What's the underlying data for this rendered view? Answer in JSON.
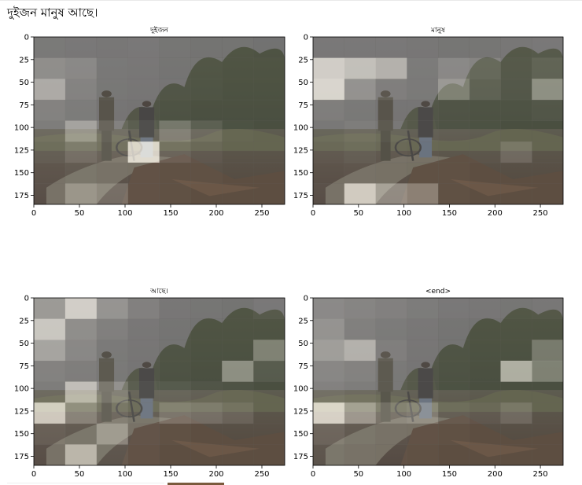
{
  "caption": "দুইজন মানুষ আছে।",
  "chart_data": [
    {
      "type": "heatmap",
      "title": "দুইজন",
      "xticks": [
        0,
        50,
        100,
        150,
        200,
        250
      ],
      "yticks": [
        0,
        25,
        50,
        75,
        100,
        125,
        150,
        175
      ],
      "xlim": [
        0,
        275
      ],
      "ylim": [
        185,
        0
      ],
      "grid": [
        [
          0.12,
          0.1,
          0.08,
          0.1,
          0.06,
          0.04,
          0.04,
          0.02
        ],
        [
          0.35,
          0.3,
          0.12,
          0.1,
          0.06,
          0.06,
          0.04,
          0.04
        ],
        [
          0.6,
          0.25,
          0.12,
          0.1,
          0.08,
          0.06,
          0.04,
          0.04
        ],
        [
          0.25,
          0.18,
          0.1,
          0.08,
          0.06,
          0.04,
          0.04,
          0.04
        ],
        [
          0.2,
          0.55,
          0.25,
          0.15,
          0.4,
          0.2,
          0.06,
          0.04
        ],
        [
          0.15,
          0.3,
          0.2,
          0.95,
          0.2,
          0.1,
          0.04,
          0.04
        ],
        [
          0.1,
          0.15,
          0.1,
          0.08,
          0.06,
          0.06,
          0.04,
          0.04
        ],
        [
          0.1,
          0.45,
          0.35,
          0.08,
          0.06,
          0.04,
          0.04,
          0.04
        ]
      ]
    },
    {
      "type": "heatmap",
      "title": "মানুষ",
      "xticks": [
        0,
        50,
        100,
        150,
        200,
        250
      ],
      "yticks": [
        0,
        25,
        50,
        75,
        100,
        125,
        150,
        175
      ],
      "xlim": [
        0,
        275
      ],
      "ylim": [
        185,
        0
      ],
      "grid": [
        [
          0.1,
          0.1,
          0.1,
          0.08,
          0.06,
          0.06,
          0.08,
          0.1
        ],
        [
          0.85,
          0.75,
          0.65,
          0.15,
          0.3,
          0.25,
          0.1,
          0.2
        ],
        [
          0.9,
          0.4,
          0.2,
          0.15,
          0.45,
          0.2,
          0.1,
          0.55
        ],
        [
          0.2,
          0.15,
          0.1,
          0.1,
          0.08,
          0.06,
          0.06,
          0.1
        ],
        [
          0.15,
          0.2,
          0.15,
          0.1,
          0.08,
          0.06,
          0.04,
          0.04
        ],
        [
          0.1,
          0.15,
          0.1,
          0.08,
          0.06,
          0.06,
          0.25,
          0.04
        ],
        [
          0.08,
          0.1,
          0.08,
          0.06,
          0.06,
          0.04,
          0.04,
          0.04
        ],
        [
          0.1,
          0.85,
          0.55,
          0.45,
          0.06,
          0.04,
          0.04,
          0.04
        ]
      ]
    },
    {
      "type": "heatmap",
      "title": "আছে।",
      "xticks": [
        0,
        50,
        100,
        150,
        200,
        250
      ],
      "yticks": [
        0,
        25,
        50,
        75,
        100,
        125,
        150,
        175
      ],
      "xlim": [
        0,
        275
      ],
      "ylim": [
        185,
        0
      ],
      "grid": [
        [
          0.45,
          0.85,
          0.4,
          0.2,
          0.08,
          0.06,
          0.04,
          0.1
        ],
        [
          0.8,
          0.35,
          0.2,
          0.1,
          0.06,
          0.04,
          0.04,
          0.04
        ],
        [
          0.55,
          0.3,
          0.15,
          0.1,
          0.06,
          0.04,
          0.04,
          0.45
        ],
        [
          0.25,
          0.2,
          0.15,
          0.1,
          0.06,
          0.04,
          0.55,
          0.15
        ],
        [
          0.2,
          0.75,
          0.4,
          0.15,
          0.15,
          0.1,
          0.08,
          0.04
        ],
        [
          0.9,
          0.45,
          0.25,
          0.15,
          0.35,
          0.3,
          0.2,
          0.04
        ],
        [
          0.2,
          0.15,
          0.5,
          0.1,
          0.06,
          0.04,
          0.04,
          0.04
        ],
        [
          0.1,
          0.7,
          0.15,
          0.08,
          0.04,
          0.04,
          0.04,
          0.04
        ]
      ]
    },
    {
      "type": "heatmap",
      "title": "<end>",
      "xticks": [
        0,
        50,
        100,
        150,
        200,
        250
      ],
      "yticks": [
        0,
        25,
        50,
        75,
        100,
        125,
        150,
        175
      ],
      "xlim": [
        0,
        275
      ],
      "ylim": [
        185,
        0
      ],
      "grid": [
        [
          0.3,
          0.25,
          0.2,
          0.15,
          0.1,
          0.08,
          0.06,
          0.08
        ],
        [
          0.4,
          0.2,
          0.15,
          0.1,
          0.06,
          0.04,
          0.04,
          0.04
        ],
        [
          0.5,
          0.65,
          0.2,
          0.1,
          0.06,
          0.04,
          0.04,
          0.4
        ],
        [
          0.3,
          0.25,
          0.15,
          0.1,
          0.06,
          0.04,
          0.75,
          0.45
        ],
        [
          0.25,
          0.2,
          0.15,
          0.1,
          0.06,
          0.04,
          0.04,
          0.04
        ],
        [
          0.95,
          0.6,
          0.35,
          0.4,
          0.15,
          0.1,
          0.25,
          0.04
        ],
        [
          0.25,
          0.15,
          0.1,
          0.08,
          0.06,
          0.04,
          0.04,
          0.04
        ],
        [
          0.15,
          0.1,
          0.08,
          0.06,
          0.04,
          0.04,
          0.04,
          0.04
        ]
      ]
    }
  ]
}
